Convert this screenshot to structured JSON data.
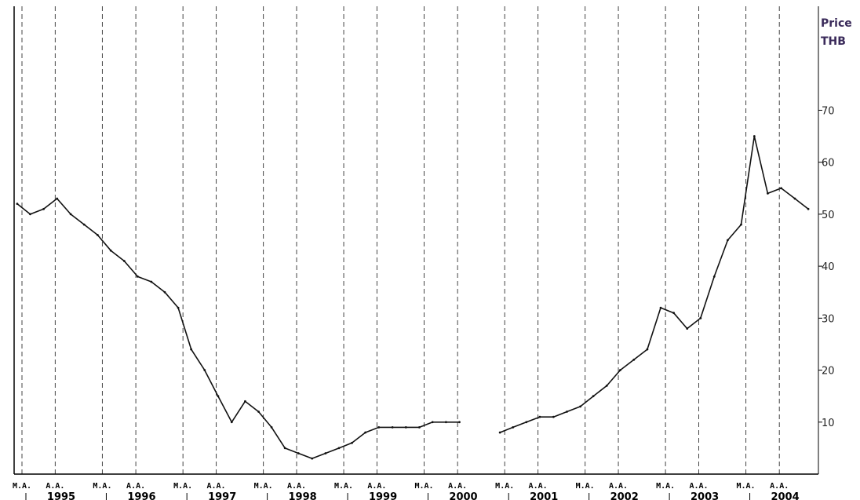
{
  "chart_data": {
    "type": "line",
    "y_unit": [
      "Price",
      "THB"
    ],
    "ylim": [
      0,
      90
    ],
    "y_ticks": [
      10,
      20,
      30,
      40,
      50,
      60,
      70
    ],
    "grid": "vertical-dashed",
    "month_ticks": [
      "M.A.",
      "A.A.",
      "M.A.",
      "A.A.",
      "M.A.",
      "A.A.",
      "M.A.",
      "A.A.",
      "M.A.",
      "A.A.",
      "M.A.",
      "A.A.",
      "M.A.",
      "A.A.",
      "M.A.",
      "A.A.",
      "M.A.",
      "A.A.",
      "M.A.",
      "A.A."
    ],
    "years": [
      "1995",
      "1996",
      "1997",
      "1998",
      "1999",
      "2000",
      "2001",
      "2002",
      "2003",
      "2004"
    ],
    "series": [
      {
        "color": "#111111",
        "x": [
          "1995-01",
          "1995-03",
          "1995-05",
          "1995-07",
          "1995-09",
          "1995-11",
          "1996-01",
          "1996-03",
          "1996-05",
          "1996-07",
          "1996-09",
          "1996-11",
          "1997-01",
          "1997-03",
          "1997-05",
          "1997-07",
          "1997-09",
          "1997-11",
          "1998-01",
          "1998-03",
          "1998-05",
          "1998-07",
          "1998-09",
          "1998-11",
          "1999-01",
          "1999-03",
          "1999-05",
          "1999-07",
          "1999-09",
          "1999-11",
          "2000-01",
          "2000-03",
          "2000-05",
          "2000-07",
          "2000-09",
          "2000-11",
          "2001-01",
          "2001-03",
          "2001-05",
          "2001-07",
          "2001-09",
          "2001-11",
          "2002-01",
          "2002-03",
          "2002-05",
          "2002-07",
          "2002-09",
          "2002-11",
          "2003-01",
          "2003-03",
          "2003-05",
          "2003-07",
          "2003-09",
          "2003-11",
          "2004-01",
          "2004-03",
          "2004-05",
          "2004-07",
          "2004-09",
          "2004-11"
        ],
        "y": [
          52,
          50,
          51,
          53,
          50,
          48,
          46,
          43,
          41,
          38,
          37,
          35,
          32,
          24,
          20,
          15,
          10,
          14,
          12,
          9,
          5,
          4,
          3,
          4,
          5,
          6,
          8,
          9,
          9,
          9,
          9,
          10,
          10,
          10,
          null,
          null,
          8,
          9,
          10,
          11,
          11,
          12,
          13,
          15,
          17,
          20,
          22,
          24,
          32,
          31,
          28,
          30,
          38,
          45,
          48,
          65,
          54,
          55,
          53,
          51
        ]
      }
    ]
  }
}
